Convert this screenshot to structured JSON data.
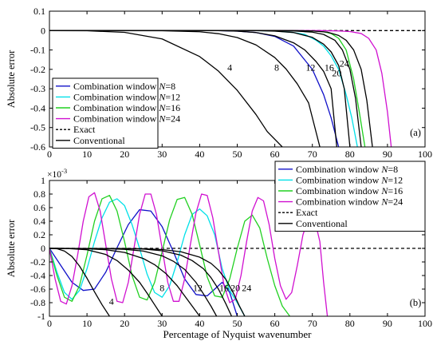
{
  "chart_data": [
    {
      "type": "line",
      "panel_label": "(a)",
      "ylabel": "Absolute error",
      "xlim": [
        0,
        100
      ],
      "ylim": [
        -0.6,
        0.1
      ],
      "xticks": [
        0,
        10,
        20,
        30,
        40,
        50,
        60,
        70,
        80,
        90,
        100
      ],
      "yticks": [
        -0.6,
        -0.5,
        -0.4,
        -0.3,
        -0.2,
        -0.1,
        0,
        0.1
      ],
      "ytick_labels": [
        "-0.6",
        "-0.5",
        "-0.4",
        "-0.3",
        "-0.2",
        "-0.1",
        "0",
        "0.1"
      ],
      "legend": {
        "position": "left",
        "entries": [
          {
            "prefix": "Combination window ",
            "var": "N",
            "suffix": "=8",
            "color": "#1010c8",
            "dash": "solid"
          },
          {
            "prefix": "Combination window ",
            "var": "N",
            "suffix": "=12",
            "color": "#00e0e8",
            "dash": "solid"
          },
          {
            "prefix": "Combination window ",
            "var": "N",
            "suffix": "=16",
            "color": "#20d020",
            "dash": "solid"
          },
          {
            "prefix": "Combination window ",
            "var": "N",
            "suffix": "=24",
            "color": "#d010d0",
            "dash": "solid"
          },
          {
            "prefix": "Exact",
            "var": "",
            "suffix": "",
            "color": "#000000",
            "dash": "dashed"
          },
          {
            "prefix": "Conventional",
            "var": "",
            "suffix": "",
            "color": "#000000",
            "dash": "solid"
          }
        ]
      },
      "series": [
        {
          "name": "Exact",
          "color": "#000000",
          "dash": "dashed",
          "x": [
            0,
            100
          ],
          "y": [
            0,
            0
          ]
        },
        {
          "name": "Combination window N=8",
          "color": "#1010c8",
          "x": [
            0,
            45,
            50,
            55,
            60,
            65,
            70,
            73,
            75,
            77
          ],
          "y": [
            0,
            0,
            -0.003,
            -0.01,
            -0.03,
            -0.08,
            -0.2,
            -0.33,
            -0.45,
            -0.6
          ]
        },
        {
          "name": "Combination window N=12",
          "color": "#00e0e8",
          "x": [
            0,
            55,
            60,
            65,
            68,
            71,
            73,
            75,
            77,
            79,
            80.5,
            82
          ],
          "y": [
            0,
            0,
            -0.002,
            -0.01,
            -0.02,
            -0.05,
            -0.08,
            -0.13,
            -0.2,
            -0.33,
            -0.45,
            -0.6
          ]
        },
        {
          "name": "Combination window N=16",
          "color": "#20d020",
          "x": [
            0,
            65,
            70,
            73,
            75,
            77,
            79,
            81,
            82.5,
            84
          ],
          "y": [
            0,
            0,
            -0.002,
            -0.006,
            -0.015,
            -0.04,
            -0.1,
            -0.25,
            -0.42,
            -0.6
          ]
        },
        {
          "name": "Combination window N=24",
          "color": "#d010d0",
          "x": [
            0,
            72,
            77,
            80,
            83,
            85,
            87,
            88.5,
            90,
            91
          ],
          "y": [
            0,
            0,
            -0.002,
            -0.005,
            -0.015,
            -0.04,
            -0.1,
            -0.22,
            -0.42,
            -0.6
          ]
        },
        {
          "name": "Conventional 4",
          "color": "#000000",
          "x": [
            0,
            10,
            20,
            30,
            40,
            45,
            50,
            55,
            58,
            62
          ],
          "y": [
            0,
            -0.001,
            -0.009,
            -0.043,
            -0.134,
            -0.209,
            -0.308,
            -0.433,
            -0.521,
            -0.6
          ]
        },
        {
          "name": "Conventional 8",
          "color": "#000000",
          "x": [
            0,
            30,
            40,
            45,
            50,
            55,
            60,
            63,
            66,
            69,
            72
          ],
          "y": [
            0,
            -0.001,
            -0.006,
            -0.016,
            -0.036,
            -0.074,
            -0.139,
            -0.198,
            -0.275,
            -0.373,
            -0.6
          ]
        },
        {
          "name": "Conventional 12",
          "color": "#000000",
          "x": [
            0,
            45,
            50,
            55,
            60,
            65,
            68,
            71,
            73,
            75,
            76.5
          ],
          "y": [
            0,
            0,
            -0.003,
            -0.01,
            -0.027,
            -0.063,
            -0.1,
            -0.16,
            -0.21,
            -0.3,
            -0.6
          ]
        },
        {
          "name": "Conventional 16",
          "color": "#000000",
          "x": [
            0,
            55,
            60,
            65,
            70,
            73,
            75,
            77,
            78.5,
            80
          ],
          "y": [
            0,
            0,
            -0.003,
            -0.01,
            -0.035,
            -0.07,
            -0.11,
            -0.18,
            -0.3,
            -0.6
          ]
        },
        {
          "name": "Conventional 20",
          "color": "#000000",
          "x": [
            0,
            60,
            65,
            70,
            73,
            76,
            78,
            80,
            81.5,
            83
          ],
          "y": [
            0,
            0,
            -0.002,
            -0.008,
            -0.02,
            -0.05,
            -0.1,
            -0.2,
            -0.35,
            -0.6
          ]
        },
        {
          "name": "Conventional 24",
          "color": "#000000",
          "x": [
            0,
            65,
            70,
            74,
            77,
            79,
            81,
            83,
            84.5,
            86
          ],
          "y": [
            0,
            0,
            -0.002,
            -0.008,
            -0.025,
            -0.05,
            -0.1,
            -0.2,
            -0.36,
            -0.6
          ]
        }
      ],
      "annotations": [
        {
          "text": "4",
          "x": 48,
          "y": -0.19
        },
        {
          "text": "8",
          "x": 60.5,
          "y": -0.19
        },
        {
          "text": "12",
          "x": 69.5,
          "y": -0.19
        },
        {
          "text": "16",
          "x": 74.5,
          "y": -0.19
        },
        {
          "text": "24",
          "x": 78.5,
          "y": -0.17
        },
        {
          "text": "20",
          "x": 76.5,
          "y": -0.22
        }
      ]
    },
    {
      "type": "line",
      "panel_label": "(b)",
      "xlabel": "Percentage of Nyquist wavenumber",
      "ylabel": "Absolute error",
      "y_scale_label": "×10",
      "y_scale_exp": "-3",
      "xlim": [
        0,
        100
      ],
      "ylim": [
        -1,
        1
      ],
      "xticks": [
        0,
        10,
        20,
        30,
        40,
        50,
        60,
        70,
        80,
        90,
        100
      ],
      "yticks": [
        -1,
        -0.8,
        -0.6,
        -0.4,
        -0.2,
        0,
        0.2,
        0.4,
        0.6,
        0.8,
        1
      ],
      "ytick_labels": [
        "-1",
        "-0.8",
        "-0.6",
        "-0.4",
        "-0.2",
        "0",
        "0.2",
        "0.4",
        "0.6",
        "0.8",
        "1"
      ],
      "legend": {
        "position": "top-right",
        "entries": [
          {
            "prefix": "Combination window ",
            "var": "N",
            "suffix": "=8",
            "color": "#1010c8",
            "dash": "solid"
          },
          {
            "prefix": "Combination window ",
            "var": "N",
            "suffix": "=12",
            "color": "#00e0e8",
            "dash": "solid"
          },
          {
            "prefix": "Combination window ",
            "var": "N",
            "suffix": "=16",
            "color": "#20d020",
            "dash": "solid"
          },
          {
            "prefix": "Combination window ",
            "var": "N",
            "suffix": "=24",
            "color": "#d010d0",
            "dash": "solid"
          },
          {
            "prefix": "Exact",
            "var": "",
            "suffix": "",
            "color": "#000000",
            "dash": "dashed"
          },
          {
            "prefix": "Conventional",
            "var": "",
            "suffix": "",
            "color": "#000000",
            "dash": "solid"
          }
        ]
      },
      "series": [
        {
          "name": "Exact",
          "color": "#000000",
          "dash": "dashed",
          "x": [
            0,
            100
          ],
          "y": [
            0,
            0
          ]
        },
        {
          "name": "Combination window N=8",
          "color": "#1010c8",
          "x": [
            0,
            3,
            6,
            9,
            12,
            15,
            18,
            21,
            24,
            27,
            30,
            33,
            36,
            39,
            42,
            44,
            46,
            48,
            50
          ],
          "y": [
            0,
            -0.25,
            -0.5,
            -0.62,
            -0.6,
            -0.35,
            0.01,
            0.35,
            0.57,
            0.55,
            0.32,
            -0.05,
            -0.45,
            -0.68,
            -0.7,
            -0.6,
            -0.5,
            -0.65,
            -1.0
          ]
        },
        {
          "name": "Combination window N=12",
          "color": "#00e0e8",
          "x": [
            0,
            2,
            4,
            6,
            8,
            10,
            12,
            14,
            16,
            18,
            20,
            22,
            24,
            26,
            28,
            30,
            32,
            34,
            36,
            38,
            40,
            42,
            44,
            46,
            48,
            50,
            52
          ],
          "y": [
            0,
            -0.35,
            -0.65,
            -0.75,
            -0.62,
            -0.3,
            0.1,
            0.45,
            0.68,
            0.73,
            0.63,
            0.35,
            0.0,
            -0.38,
            -0.65,
            -0.72,
            -0.55,
            -0.2,
            0.2,
            0.5,
            0.58,
            0.48,
            0.2,
            -0.3,
            -0.62,
            -0.8,
            -1.0
          ]
        },
        {
          "name": "Combination window N=16",
          "color": "#20d020",
          "x": [
            0,
            2,
            4,
            6,
            8,
            10,
            12,
            14,
            16,
            18,
            20,
            22,
            24,
            26,
            28,
            30,
            32,
            34,
            36,
            38,
            40,
            42,
            44,
            46,
            48,
            50,
            52,
            54,
            56,
            58,
            60,
            62,
            64
          ],
          "y": [
            0,
            -0.4,
            -0.72,
            -0.78,
            -0.55,
            -0.1,
            0.4,
            0.73,
            0.78,
            0.55,
            0.1,
            -0.4,
            -0.72,
            -0.76,
            -0.5,
            -0.05,
            0.42,
            0.72,
            0.75,
            0.5,
            0.05,
            -0.42,
            -0.7,
            -0.72,
            -0.45,
            0.0,
            0.4,
            0.49,
            0.3,
            -0.15,
            -0.55,
            -0.85,
            -1.0
          ]
        },
        {
          "name": "Combination window N=24",
          "color": "#d010d0",
          "x": [
            0,
            1.5,
            3,
            4.5,
            6,
            7.5,
            9,
            10.5,
            12,
            13.5,
            15,
            16.5,
            18,
            19.5,
            21,
            22.5,
            24,
            25.5,
            27,
            28.5,
            30,
            31.5,
            33,
            34.5,
            36,
            37.5,
            39,
            40.5,
            42,
            43.5,
            45,
            46.5,
            48,
            49.5,
            51,
            52.5,
            54,
            55.5,
            57,
            58.5,
            60,
            61.5,
            63,
            64.5,
            66,
            67.5,
            69,
            70.5,
            72,
            73,
            74
          ],
          "y": [
            0,
            -0.45,
            -0.78,
            -0.82,
            -0.55,
            -0.1,
            0.4,
            0.76,
            0.82,
            0.55,
            0.05,
            -0.45,
            -0.78,
            -0.8,
            -0.5,
            0.0,
            0.5,
            0.8,
            0.8,
            0.5,
            0.0,
            -0.5,
            -0.78,
            -0.78,
            -0.45,
            0.05,
            0.52,
            0.8,
            0.78,
            0.45,
            -0.05,
            -0.55,
            -0.8,
            -0.75,
            -0.4,
            0.1,
            0.55,
            0.75,
            0.7,
            0.35,
            -0.15,
            -0.55,
            -0.75,
            -0.65,
            -0.25,
            0.2,
            0.45,
            0.45,
            0.1,
            -0.5,
            -1.0
          ]
        },
        {
          "name": "Conventional 4",
          "color": "#000000",
          "x": [
            0,
            2,
            4,
            6,
            8,
            10,
            12,
            14,
            16
          ],
          "y": [
            0,
            -0.005,
            -0.04,
            -0.12,
            -0.26,
            -0.44,
            -0.64,
            -0.83,
            -1.0
          ]
        },
        {
          "name": "Conventional 8",
          "color": "#000000",
          "x": [
            0,
            5,
            10,
            15,
            18,
            21,
            24,
            26,
            28,
            30
          ],
          "y": [
            0,
            -0.002,
            -0.02,
            -0.09,
            -0.18,
            -0.32,
            -0.5,
            -0.66,
            -0.83,
            -1.0
          ]
        },
        {
          "name": "Conventional 12",
          "color": "#000000",
          "x": [
            0,
            10,
            15,
            20,
            25,
            28,
            31,
            34,
            36,
            38,
            40
          ],
          "y": [
            0,
            -0.005,
            -0.02,
            -0.06,
            -0.15,
            -0.24,
            -0.37,
            -0.55,
            -0.7,
            -0.85,
            -1.0
          ]
        },
        {
          "name": "Conventional 16",
          "color": "#000000",
          "x": [
            0,
            15,
            20,
            25,
            30,
            33,
            36,
            39,
            41,
            43,
            44.5
          ],
          "y": [
            0,
            -0.004,
            -0.014,
            -0.04,
            -0.11,
            -0.19,
            -0.31,
            -0.5,
            -0.67,
            -0.85,
            -1.0
          ]
        },
        {
          "name": "Conventional 20",
          "color": "#000000",
          "x": [
            0,
            20,
            25,
            30,
            35,
            38,
            41,
            43,
            45,
            47,
            48.5
          ],
          "y": [
            0,
            -0.003,
            -0.01,
            -0.035,
            -0.1,
            -0.18,
            -0.3,
            -0.43,
            -0.6,
            -0.82,
            -1.0
          ]
        },
        {
          "name": "Conventional 24",
          "color": "#000000",
          "x": [
            0,
            25,
            30,
            35,
            40,
            43,
            45,
            47,
            49,
            50.5,
            52
          ],
          "y": [
            0,
            -0.005,
            -0.018,
            -0.05,
            -0.13,
            -0.22,
            -0.32,
            -0.46,
            -0.66,
            -0.84,
            -1.0
          ]
        }
      ],
      "annotations": [
        {
          "text": "4",
          "x": 16.5,
          "y": -0.78
        },
        {
          "text": "8",
          "x": 30,
          "y": -0.58
        },
        {
          "text": "12",
          "x": 39.5,
          "y": -0.58
        },
        {
          "text": "16",
          "x": 46.5,
          "y": -0.58
        },
        {
          "text": "20",
          "x": 49.5,
          "y": -0.58
        },
        {
          "text": "24",
          "x": 52.5,
          "y": -0.58
        }
      ]
    }
  ]
}
